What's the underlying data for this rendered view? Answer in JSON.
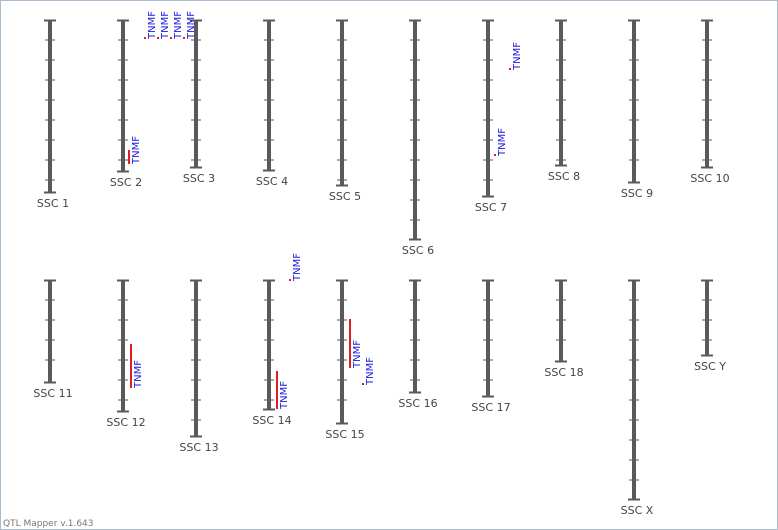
{
  "chromosomes": [
    {
      "label": "SSC 1",
      "qtls": []
    },
    {
      "label": "SSC 2",
      "qtls": [
        "TNMF"
      ]
    },
    {
      "label": "SSC 3",
      "qtls": [
        "TNMF",
        "TNMF",
        "TNMF",
        "TNMF"
      ]
    },
    {
      "label": "SSC 4",
      "qtls": []
    },
    {
      "label": "SSC 5",
      "qtls": []
    },
    {
      "label": "SSC 6",
      "qtls": []
    },
    {
      "label": "SSC 7",
      "qtls": [
        "TNMF",
        "TNMF"
      ]
    },
    {
      "label": "SSC 8",
      "qtls": []
    },
    {
      "label": "SSC 9",
      "qtls": []
    },
    {
      "label": "SSC 10",
      "qtls": []
    },
    {
      "label": "SSC 11",
      "qtls": []
    },
    {
      "label": "SSC 12",
      "qtls": [
        "TNMF"
      ]
    },
    {
      "label": "SSC 13",
      "qtls": []
    },
    {
      "label": "SSC 14",
      "qtls": [
        "TNMF",
        "TNMF"
      ]
    },
    {
      "label": "SSC 15",
      "qtls": [
        "TNMF",
        "TNMF"
      ]
    },
    {
      "label": "SSC 16",
      "qtls": []
    },
    {
      "label": "SSC 17",
      "qtls": []
    },
    {
      "label": "SSC 18",
      "qtls": []
    },
    {
      "label": "SSC X",
      "qtls": []
    },
    {
      "label": "SSC Y",
      "qtls": []
    }
  ],
  "footer": "QTL Mapper v.1.643"
}
